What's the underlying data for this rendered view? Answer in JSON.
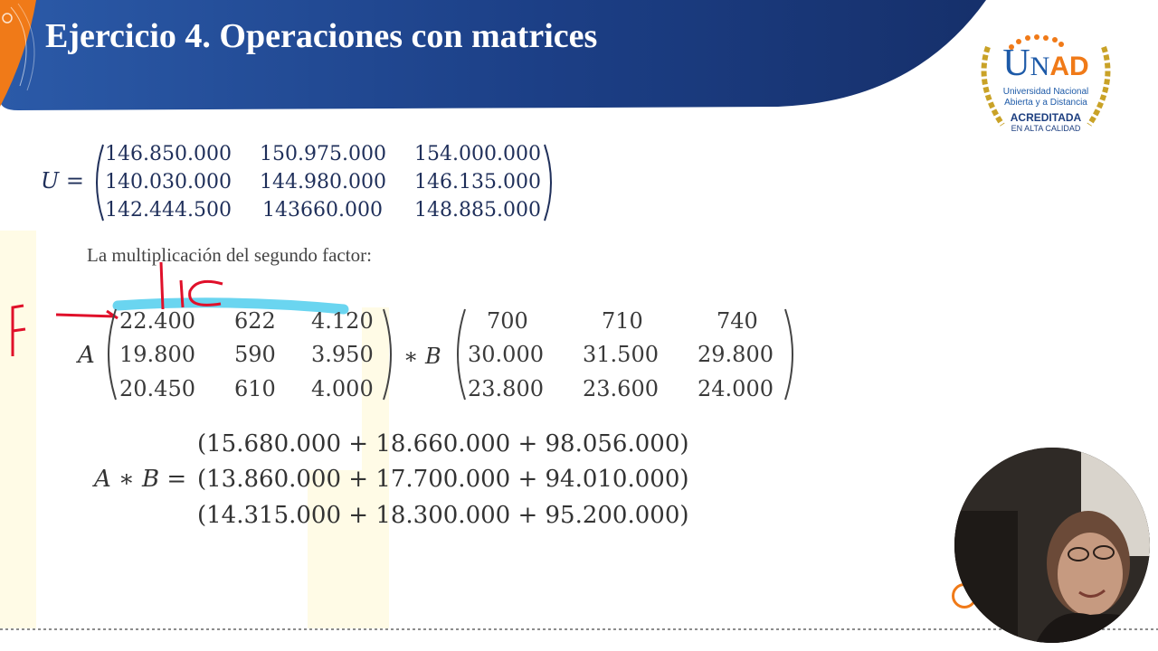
{
  "slide": {
    "title": "Ejercicio 4. Operaciones con matrices",
    "sentence": "La multiplicación del segundo factor:"
  },
  "logo": {
    "letters_u": "U",
    "letters_n": "N",
    "letters_ad": "AD",
    "line1": "Universidad Nacional",
    "line2": "Abierta y a Distancia",
    "badge": "ACREDITADA",
    "badge_sub": "EN ALTA CALIDAD"
  },
  "matrix_u": {
    "label": "U =",
    "rows": [
      [
        "146.850.000",
        "150.975.000",
        "154.000.000"
      ],
      [
        "140.030.000",
        "144.980.000",
        "146.135.000"
      ],
      [
        "142.444.500",
        "143660.000",
        "148.885.000"
      ]
    ]
  },
  "matrix_a": {
    "label": "A",
    "rows": [
      [
        "22.400",
        "622",
        "4.120"
      ],
      [
        "19.800",
        "590",
        "3.950"
      ],
      [
        "20.450",
        "610",
        "4.000"
      ]
    ]
  },
  "operator": "∗ B",
  "matrix_b": {
    "rows": [
      [
        "700",
        "710",
        "740"
      ],
      [
        "30.000",
        "31.500",
        "29.800"
      ],
      [
        "23.800",
        "23.600",
        "24.000"
      ]
    ]
  },
  "product": {
    "label": "A ∗ B =",
    "rows": [
      "(15.680.000 + 18.660.000 + 98.056.000)",
      "(13.860.000 + 17.700.000 + 94.010.000)",
      "(14.315.000 + 18.300.000 + 95.200.000)"
    ]
  },
  "annotations": {
    "row_letter": "F",
    "column_letters": "C",
    "ink_red": "#e0102a",
    "highlight_blue": "#5ad0ee"
  },
  "colors": {
    "banner_dark": "#16306b",
    "banner_light": "#2f5fb0",
    "accent_orange": "#f07a18",
    "logo_gold": "#c9a227",
    "logo_blue": "#1d5aa8"
  }
}
